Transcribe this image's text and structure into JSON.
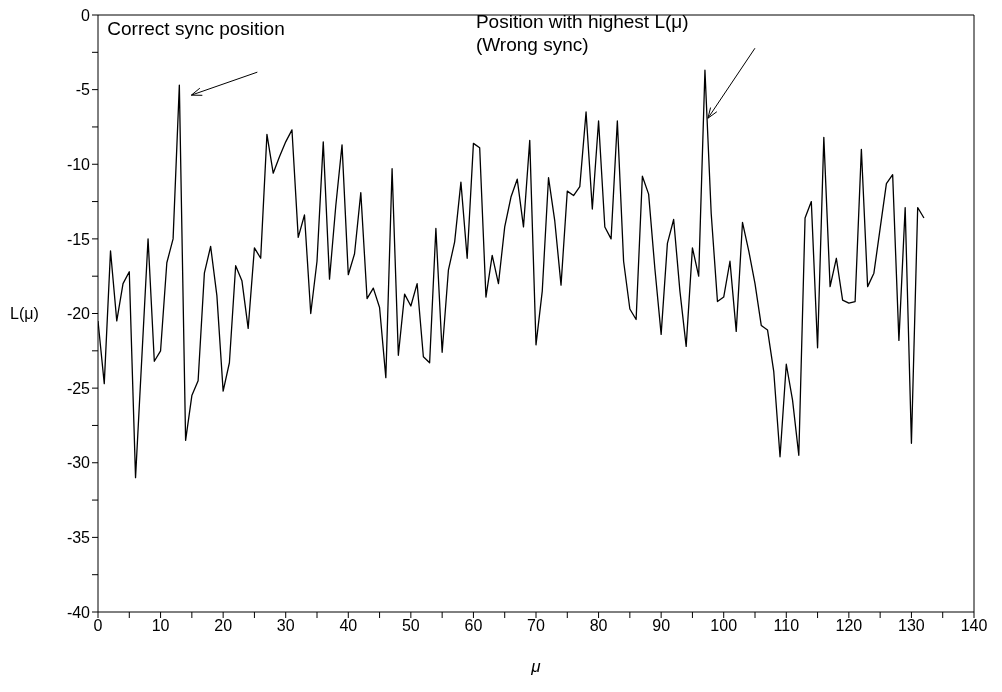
{
  "chart_data": {
    "type": "line",
    "xlabel": "μ",
    "ylabel": "L(μ)",
    "x": [
      0,
      1,
      2,
      3,
      4,
      5,
      6,
      7,
      8,
      9,
      10,
      11,
      12,
      13,
      14,
      15,
      16,
      17,
      18,
      19,
      20,
      21,
      22,
      23,
      24,
      25,
      26,
      27,
      28,
      29,
      30,
      31,
      32,
      33,
      34,
      35,
      36,
      37,
      38,
      39,
      40,
      41,
      42,
      43,
      44,
      45,
      46,
      47,
      48,
      49,
      50,
      51,
      52,
      53,
      54,
      55,
      56,
      57,
      58,
      59,
      60,
      61,
      62,
      63,
      64,
      65,
      66,
      67,
      68,
      69,
      70,
      71,
      72,
      73,
      74,
      75,
      76,
      77,
      78,
      79,
      80,
      81,
      82,
      83,
      84,
      85,
      86,
      87,
      88,
      89,
      90,
      91,
      92,
      93,
      94,
      95,
      96,
      97,
      98,
      99,
      100,
      101,
      102,
      103,
      104,
      105,
      106,
      107,
      108,
      109,
      110,
      111,
      112,
      113,
      114,
      115,
      116,
      117,
      118,
      119,
      120,
      121,
      122,
      123,
      124,
      125,
      126,
      127,
      128,
      129,
      130,
      131,
      132
    ],
    "series": [
      {
        "color": "#000000",
        "values": [
          -20.5,
          -24.7,
          -15.8,
          -20.5,
          -18,
          -17.2,
          -31,
          -23,
          -15,
          -23.2,
          -22.5,
          -16.6,
          -15,
          -4.7,
          -28.5,
          -25.5,
          -24.5,
          -17.3,
          -15.5,
          -18.8,
          -25.2,
          -23.3,
          -16.8,
          -17.8,
          -21,
          -15.6,
          -16.3,
          -8,
          -10.6,
          -9.5,
          -8.5,
          -7.7,
          -14.9,
          -13.4,
          -20,
          -16.5,
          -8.5,
          -17.7,
          -12.8,
          -8.7,
          -17.4,
          -16,
          -11.9,
          -19,
          -18.3,
          -19.6,
          -24.3,
          -10.3,
          -22.8,
          -18.7,
          -19.5,
          -18,
          -22.9,
          -23.3,
          -14.3,
          -22.6,
          -17.1,
          -15.2,
          -11.2,
          -16.3,
          -8.6,
          -8.9,
          -18.9,
          -16.1,
          -18,
          -14.2,
          -12.2,
          -11,
          -14.2,
          -8.4,
          -22.1,
          -18.5,
          -10.9,
          -13.8,
          -18.1,
          -11.8,
          -12.1,
          -11.5,
          -6.5,
          -13,
          -7.1,
          -14.2,
          -15,
          -7.1,
          -16.5,
          -19.7,
          -20.4,
          -10.8,
          -12,
          -17,
          -21.4,
          -15.3,
          -13.7,
          -18.5,
          -22.2,
          -15.6,
          -17.5,
          -3.7,
          -13.3,
          -19.2,
          -18.9,
          -16.5,
          -21.2,
          -13.9,
          -15.8,
          -18,
          -20.8,
          -21.1,
          -23.9,
          -29.6,
          -23.4,
          -25.8,
          -29.5,
          -13.6,
          -12.5,
          -22.3,
          -8.2,
          -18.2,
          -16.3,
          -19.1,
          -19.3,
          -19.2,
          -9,
          -18.2,
          -17.3,
          -14.3,
          -11.3,
          -10.7,
          -21.8,
          -12.9,
          -28.7,
          -12.9,
          -13.6
        ]
      }
    ],
    "xlim": [
      0,
      140
    ],
    "xticks": [
      0,
      {
        "value": 5,
        "label": null
      },
      10,
      {
        "value": 15,
        "label": null
      },
      20,
      {
        "value": 25,
        "label": null
      },
      30,
      {
        "value": 35,
        "label": null
      },
      40,
      {
        "value": 45,
        "label": null
      },
      50,
      {
        "value": 55,
        "label": null
      },
      60,
      {
        "value": 65,
        "label": null
      },
      70,
      {
        "value": 75,
        "label": null
      },
      80,
      {
        "value": 85,
        "label": null
      },
      90,
      {
        "value": 95,
        "label": null
      },
      100,
      {
        "value": 105,
        "label": null
      },
      110,
      {
        "value": 115,
        "label": null
      },
      120,
      {
        "value": 125,
        "label": null
      },
      130,
      {
        "value": 135,
        "label": null
      },
      140
    ],
    "ylim": [
      -40,
      0
    ],
    "yticks": [
      -40,
      {
        "value": -37.5,
        "label": null
      },
      -35,
      {
        "value": -32.5,
        "label": null
      },
      -30,
      {
        "value": -27.5,
        "label": null
      },
      -25,
      {
        "value": -22.5,
        "label": null
      },
      -20,
      {
        "value": -17.5,
        "label": null
      },
      -15,
      {
        "value": -12.5,
        "label": null
      },
      -10,
      {
        "value": -7.5,
        "label": null
      },
      -5,
      {
        "value": -2.5,
        "label": null
      },
      0
    ],
    "grid": false,
    "legend": false,
    "marker": "none",
    "line_style": "solid",
    "annotations": [
      {
        "text": "Correct sync position",
        "x": 13,
        "y": -4.7
      },
      {
        "text": "Position with highest L(μ)",
        "x": 97,
        "y": -3.7
      },
      "(Wrong sync)"
    ]
  }
}
